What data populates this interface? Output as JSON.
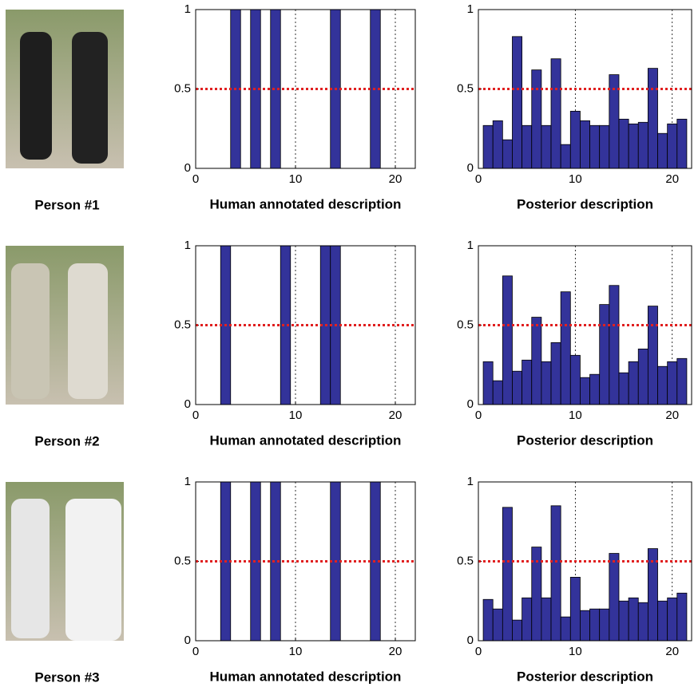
{
  "people": [
    {
      "label": "Person #1"
    },
    {
      "label": "Person #2"
    },
    {
      "label": "Person #3"
    }
  ],
  "chart_data": [
    {
      "type": "bar",
      "xlabel": "Human annotated description",
      "x": [
        1,
        2,
        3,
        4,
        5,
        6,
        7,
        8,
        9,
        10,
        11,
        12,
        13,
        14,
        15,
        16,
        17,
        18,
        19,
        20,
        21
      ],
      "values": [
        0,
        0,
        0,
        1,
        0,
        1,
        0,
        1,
        0,
        0,
        0,
        0,
        0,
        1,
        0,
        0,
        0,
        1,
        0,
        0,
        0
      ],
      "color": "#33339a",
      "xlim": [
        0,
        22
      ],
      "xticks": [
        0,
        10,
        20
      ],
      "ylim": [
        0,
        1
      ],
      "yticks": [
        0,
        0.5,
        1
      ],
      "grid": "x",
      "reference_line": {
        "value": 0.5,
        "color": "#e02020"
      }
    },
    {
      "type": "bar",
      "xlabel": "Posterior description",
      "x": [
        1,
        2,
        3,
        4,
        5,
        6,
        7,
        8,
        9,
        10,
        11,
        12,
        13,
        14,
        15,
        16,
        17,
        18,
        19,
        20,
        21
      ],
      "values": [
        0.27,
        0.3,
        0.18,
        0.83,
        0.27,
        0.62,
        0.27,
        0.69,
        0.15,
        0.36,
        0.3,
        0.27,
        0.27,
        0.59,
        0.31,
        0.28,
        0.29,
        0.63,
        0.22,
        0.28,
        0.31
      ],
      "color": "#33339a",
      "xlim": [
        0,
        22
      ],
      "xticks": [
        0,
        10,
        20
      ],
      "ylim": [
        0,
        1
      ],
      "yticks": [
        0,
        0.5,
        1
      ],
      "grid": "x",
      "reference_line": {
        "value": 0.5,
        "color": "#e02020"
      }
    },
    {
      "type": "bar",
      "xlabel": "Human annotated description",
      "x": [
        1,
        2,
        3,
        4,
        5,
        6,
        7,
        8,
        9,
        10,
        11,
        12,
        13,
        14,
        15,
        16,
        17,
        18,
        19,
        20,
        21
      ],
      "values": [
        0,
        0,
        1,
        0,
        0,
        0,
        0,
        0,
        1,
        0,
        0,
        0,
        1,
        1,
        0,
        0,
        0,
        0,
        0,
        0,
        0
      ],
      "color": "#33339a",
      "xlim": [
        0,
        22
      ],
      "xticks": [
        0,
        10,
        20
      ],
      "ylim": [
        0,
        1
      ],
      "yticks": [
        0,
        0.5,
        1
      ],
      "grid": "x",
      "reference_line": {
        "value": 0.5,
        "color": "#e02020"
      }
    },
    {
      "type": "bar",
      "xlabel": "Posterior description",
      "x": [
        1,
        2,
        3,
        4,
        5,
        6,
        7,
        8,
        9,
        10,
        11,
        12,
        13,
        14,
        15,
        16,
        17,
        18,
        19,
        20,
        21
      ],
      "values": [
        0.27,
        0.15,
        0.81,
        0.21,
        0.28,
        0.55,
        0.27,
        0.39,
        0.71,
        0.31,
        0.17,
        0.19,
        0.63,
        0.75,
        0.2,
        0.27,
        0.35,
        0.62,
        0.24,
        0.27,
        0.29
      ],
      "color": "#33339a",
      "xlim": [
        0,
        22
      ],
      "xticks": [
        0,
        10,
        20
      ],
      "ylim": [
        0,
        1
      ],
      "yticks": [
        0,
        0.5,
        1
      ],
      "grid": "x",
      "reference_line": {
        "value": 0.5,
        "color": "#e02020"
      }
    },
    {
      "type": "bar",
      "xlabel": "Human annotated description",
      "x": [
        1,
        2,
        3,
        4,
        5,
        6,
        7,
        8,
        9,
        10,
        11,
        12,
        13,
        14,
        15,
        16,
        17,
        18,
        19,
        20,
        21
      ],
      "values": [
        0,
        0,
        1,
        0,
        0,
        1,
        0,
        1,
        0,
        0,
        0,
        0,
        0,
        1,
        0,
        0,
        0,
        1,
        0,
        0,
        0
      ],
      "color": "#33339a",
      "xlim": [
        0,
        22
      ],
      "xticks": [
        0,
        10,
        20
      ],
      "ylim": [
        0,
        1
      ],
      "yticks": [
        0,
        0.5,
        1
      ],
      "grid": "x",
      "reference_line": {
        "value": 0.5,
        "color": "#e02020"
      }
    },
    {
      "type": "bar",
      "xlabel": "Posterior description",
      "x": [
        1,
        2,
        3,
        4,
        5,
        6,
        7,
        8,
        9,
        10,
        11,
        12,
        13,
        14,
        15,
        16,
        17,
        18,
        19,
        20,
        21
      ],
      "values": [
        0.26,
        0.2,
        0.84,
        0.13,
        0.27,
        0.59,
        0.27,
        0.85,
        0.15,
        0.4,
        0.19,
        0.2,
        0.2,
        0.55,
        0.25,
        0.27,
        0.24,
        0.58,
        0.25,
        0.27,
        0.3
      ],
      "color": "#33339a",
      "xlim": [
        0,
        22
      ],
      "xticks": [
        0,
        10,
        20
      ],
      "ylim": [
        0,
        1
      ],
      "yticks": [
        0,
        0.5,
        1
      ],
      "grid": "x",
      "reference_line": {
        "value": 0.5,
        "color": "#e02020"
      }
    }
  ]
}
